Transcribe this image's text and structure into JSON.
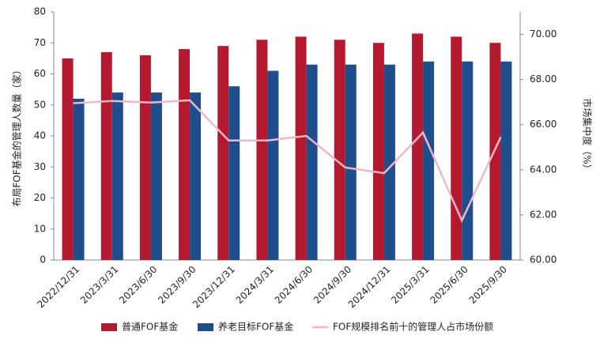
{
  "chart_data": {
    "type": "bar_line",
    "y_label": "布局FOF基金的管理人数量（家）",
    "y2_label": "市场集中度（%）",
    "categories": [
      "2022/12/31",
      "2023/3/31",
      "2023/6/30",
      "2023/9/30",
      "2023/12/31",
      "2024/3/31",
      "2024/6/30",
      "2024/9/30",
      "2024/12/31",
      "2025/3/31",
      "2025/6/30",
      "2025/9/30"
    ],
    "series": [
      {
        "name": "普通FOF基金",
        "color": "#b5192f",
        "type": "bar",
        "values": [
          65,
          67,
          66,
          68,
          69,
          71,
          72,
          71,
          70,
          73,
          72,
          70
        ]
      },
      {
        "name": "养老目标FOF基金",
        "color": "#1f4e8c",
        "type": "bar",
        "values": [
          52,
          54,
          54,
          54,
          56,
          61,
          63,
          63,
          63,
          64,
          64,
          64
        ]
      },
      {
        "name": "FOF规模排名前十的管理人占市场份额",
        "color": "#f2b6c6",
        "type": "line",
        "axis": "y2",
        "values": [
          66.95,
          67.05,
          66.98,
          67.08,
          65.3,
          65.3,
          65.5,
          64.1,
          63.85,
          65.65,
          61.75,
          65.45
        ]
      }
    ],
    "ylim": [
      0,
      80
    ],
    "yticks": [
      0,
      10,
      20,
      30,
      40,
      50,
      60,
      70,
      80
    ],
    "y2lim": [
      60,
      71
    ],
    "y2ticks": [
      {
        "value": 60,
        "label": "60.00"
      },
      {
        "value": 62,
        "label": "62.00"
      },
      {
        "value": 64,
        "label": "64.00"
      },
      {
        "value": 66,
        "label": "66.00"
      },
      {
        "value": 68,
        "label": "68.00"
      },
      {
        "value": 70,
        "label": "70.00"
      }
    ]
  }
}
